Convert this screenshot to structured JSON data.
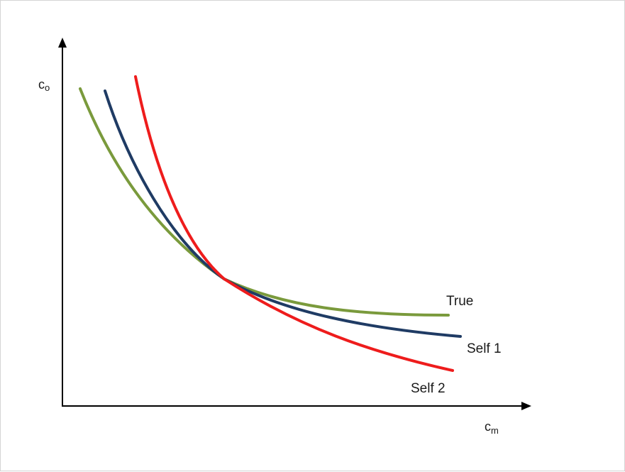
{
  "axes": {
    "y_label": {
      "main": "c",
      "sub": "o"
    },
    "x_label": {
      "main": "c",
      "sub": "m"
    }
  },
  "curves": [
    {
      "key": "true",
      "label": "True",
      "color": "#7a9a3c"
    },
    {
      "key": "self1",
      "label": "Self 1",
      "color": "#1f3b64"
    },
    {
      "key": "self2",
      "label": "Self 2",
      "color": "#ee1c1c"
    }
  ],
  "colors": {
    "axis": "#000000"
  }
}
